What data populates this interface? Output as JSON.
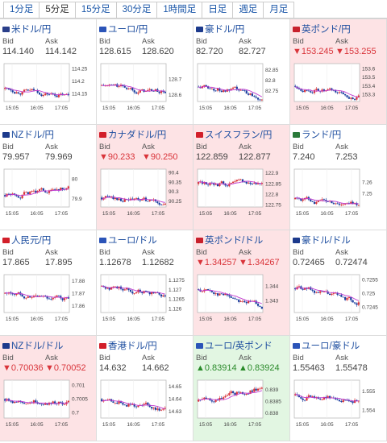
{
  "tabs": [
    "1分足",
    "5分足",
    "15分足",
    "30分足",
    "1時間足",
    "日足",
    "週足",
    "月足"
  ],
  "active_tab": 1,
  "labels": {
    "bid": "Bid",
    "ask": "Ask"
  },
  "time_ticks": [
    "15:05",
    "16:05",
    "17:05"
  ],
  "cells": [
    {
      "name": "米ドル/円",
      "flag": "#2a3f8a",
      "bid": "114.140",
      "ask": "114.142",
      "state": "normal",
      "yticks": [
        "114.25",
        "114.2",
        "114.15"
      ],
      "ymin": 114.12,
      "ymax": 114.27,
      "start": 114.17,
      "end": 114.14
    },
    {
      "name": "ユーロ/円",
      "flag": "#2b54b8",
      "bid": "128.615",
      "ask": "128.620",
      "state": "normal",
      "yticks": [
        "128.7",
        "128.6"
      ],
      "ymin": 128.56,
      "ymax": 128.8,
      "start": 128.66,
      "end": 128.615
    },
    {
      "name": "豪ドル/円",
      "flag": "#1c3a8c",
      "bid": "82.720",
      "ask": "82.727",
      "state": "normal",
      "yticks": [
        "82.85",
        "82.8",
        "82.75"
      ],
      "ymin": 82.7,
      "ymax": 82.88,
      "start": 82.77,
      "end": 82.72
    },
    {
      "name": "英ポンド/円",
      "flag": "#c8202c",
      "bid": "▼153.245",
      "ask": "▼153.255",
      "state": "down",
      "yticks": [
        "153.6",
        "153.5",
        "153.4",
        "153.3"
      ],
      "ymin": 153.22,
      "ymax": 153.66,
      "start": 153.4,
      "end": 153.245
    },
    {
      "name": "NZドル/円",
      "flag": "#1c3a8c",
      "bid": "79.957",
      "ask": "79.969",
      "state": "normal",
      "yticks": [
        "80",
        "79.9"
      ],
      "ymin": 79.86,
      "ymax": 80.05,
      "start": 79.92,
      "end": 79.957
    },
    {
      "name": "カナダドル/円",
      "flag": "#d21f2a",
      "bid": "▼90.233",
      "ask": "▼90.250",
      "state": "down",
      "yticks": [
        "90.4",
        "90.35",
        "90.3",
        "90.25"
      ],
      "ymin": 90.22,
      "ymax": 90.42,
      "start": 90.27,
      "end": 90.233
    },
    {
      "name": "スイスフラン/円",
      "flag": "#d21f2a",
      "bid": "122.859",
      "ask": "122.877",
      "state": "down",
      "yticks": [
        "122.9",
        "122.85",
        "122.8",
        "122.75"
      ],
      "ymin": 122.74,
      "ymax": 122.92,
      "start": 122.85,
      "end": 122.86
    },
    {
      "name": "ランド/円",
      "flag": "#2a7a3a",
      "bid": "7.240",
      "ask": "7.253",
      "state": "normal",
      "yticks": [
        "7.26",
        "7.25"
      ],
      "ymin": 7.238,
      "ymax": 7.272,
      "start": 7.245,
      "end": 7.24
    },
    {
      "name": "人民元/円",
      "flag": "#d21f2a",
      "bid": "17.865",
      "ask": "17.895",
      "state": "normal",
      "yticks": [
        "17.88",
        "17.87",
        "17.86"
      ],
      "ymin": 17.855,
      "ymax": 17.885,
      "start": 17.87,
      "end": 17.865
    },
    {
      "name": "ユーロ/ドル",
      "flag": "#2b54b8",
      "bid": "1.12678",
      "ask": "1.12682",
      "state": "normal",
      "yticks": [
        "1.1275",
        "1.127",
        "1.1265",
        "1.126"
      ],
      "ymin": 1.1258,
      "ymax": 1.1278,
      "start": 1.1272,
      "end": 1.12678
    },
    {
      "name": "英ポンド/ドル",
      "flag": "#c8202c",
      "bid": "▼1.34257",
      "ask": "▼1.34267",
      "state": "down",
      "yticks": [
        "1.344",
        "1.343"
      ],
      "ymin": 1.3422,
      "ymax": 1.3448,
      "start": 1.3438,
      "end": 1.34257
    },
    {
      "name": "豪ドル/ドル",
      "flag": "#1c3a8c",
      "bid": "0.72465",
      "ask": "0.72474",
      "state": "normal",
      "yticks": [
        "0.7255",
        "0.725",
        "0.7245"
      ],
      "ymin": 0.7243,
      "ymax": 0.7257,
      "start": 0.7252,
      "end": 0.72465
    },
    {
      "name": "NZドル/ドル",
      "flag": "#1c3a8c",
      "bid": "▼0.70036",
      "ask": "▼0.70052",
      "state": "down",
      "yticks": [
        "0.701",
        "0.7005",
        "0.7"
      ],
      "ymin": 0.6998,
      "ymax": 0.7012,
      "start": 0.7005,
      "end": 0.70036
    },
    {
      "name": "香港ドル/円",
      "flag": "#d21f2a",
      "bid": "14.632",
      "ask": "14.662",
      "state": "normal",
      "yticks": [
        "14.65",
        "14.64",
        "14.63"
      ],
      "ymin": 14.625,
      "ymax": 14.655,
      "start": 14.64,
      "end": 14.632
    },
    {
      "name": "ユーロ/英ポンド",
      "flag": "#2b54b8",
      "bid": "▲0.83914",
      "ask": "▲0.83924",
      "state": "up",
      "yticks": [
        "0.839",
        "0.8385",
        "0.838"
      ],
      "ymin": 0.8378,
      "ymax": 0.8394,
      "start": 0.8385,
      "end": 0.83914
    },
    {
      "name": "ユーロ/豪ドル",
      "flag": "#2b54b8",
      "bid": "1.55463",
      "ask": "1.55478",
      "state": "normal",
      "yticks": [
        "1.555",
        "1.554"
      ],
      "ymin": 1.5536,
      "ymax": 1.5556,
      "start": 1.5548,
      "end": 1.55463
    }
  ],
  "colors": {
    "up_candle": "#d9343a",
    "down_candle": "#1b3fa0",
    "ma": "#c03ad0",
    "link": "#1a56a8"
  }
}
